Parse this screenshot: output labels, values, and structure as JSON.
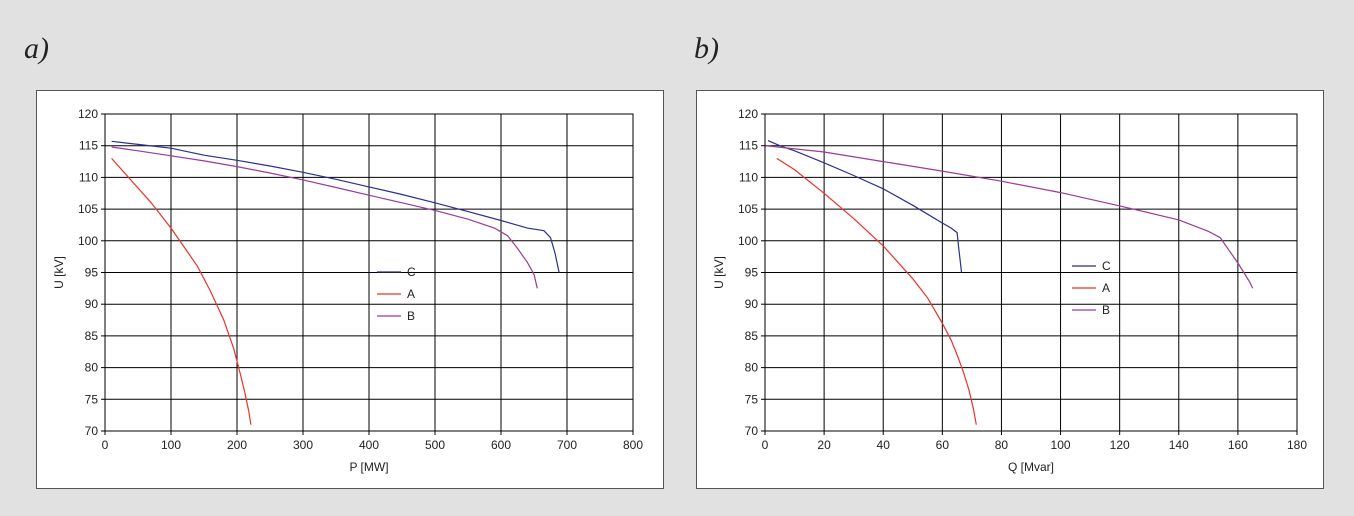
{
  "panels": {
    "a_label": "a)",
    "b_label": "b)"
  },
  "chart_data": [
    {
      "type": "line",
      "xlabel": "P [MW]",
      "ylabel": "U [kV]",
      "xlim": [
        0,
        800
      ],
      "ylim": [
        70,
        120
      ],
      "xticks": [
        0,
        100,
        200,
        300,
        400,
        500,
        600,
        700,
        800
      ],
      "yticks": [
        70,
        75,
        80,
        85,
        90,
        95,
        100,
        105,
        110,
        115,
        120
      ],
      "grid": true,
      "legend_position": "center",
      "series": [
        {
          "name": "C",
          "color": "#2b2f8f",
          "x": [
            10,
            50,
            100,
            150,
            200,
            250,
            300,
            350,
            400,
            450,
            500,
            550,
            600,
            640,
            665,
            675,
            682,
            688
          ],
          "y": [
            115.7,
            115.2,
            114.6,
            113.5,
            112.7,
            111.8,
            110.8,
            109.7,
            108.5,
            107.3,
            106.0,
            104.6,
            103.2,
            102.0,
            101.6,
            100.5,
            98.0,
            95.0
          ]
        },
        {
          "name": "A",
          "color": "#e8322a",
          "x": [
            10,
            40,
            70,
            100,
            120,
            140,
            160,
            180,
            195,
            205,
            212,
            218,
            221
          ],
          "y": [
            113.0,
            109.5,
            106.0,
            102.0,
            99.0,
            96.0,
            92.0,
            87.5,
            83.0,
            79.0,
            76.0,
            73.0,
            71.0
          ]
        },
        {
          "name": "B",
          "color": "#9a3a9b",
          "x": [
            10,
            50,
            100,
            150,
            200,
            250,
            300,
            350,
            400,
            450,
            500,
            550,
            590,
            610,
            625,
            640,
            650,
            655
          ],
          "y": [
            114.8,
            114.2,
            113.4,
            112.6,
            111.7,
            110.7,
            109.6,
            108.4,
            107.2,
            106.0,
            104.8,
            103.4,
            102.0,
            100.8,
            98.8,
            96.6,
            94.7,
            92.5
          ]
        }
      ]
    },
    {
      "type": "line",
      "xlabel": "Q [Mvar]",
      "ylabel": "U [kV]",
      "xlim": [
        0,
        180
      ],
      "ylim": [
        70,
        120
      ],
      "xticks": [
        0,
        20,
        40,
        60,
        80,
        100,
        120,
        140,
        160,
        180
      ],
      "yticks": [
        70,
        75,
        80,
        85,
        90,
        95,
        100,
        105,
        110,
        115,
        120
      ],
      "grid": true,
      "legend_position": "center-right",
      "series": [
        {
          "name": "C",
          "color": "#2b2f8f",
          "x": [
            1,
            5,
            10,
            20,
            30,
            40,
            50,
            55,
            60,
            63,
            65,
            65.5,
            66,
            66.5
          ],
          "y": [
            115.8,
            115.0,
            114.2,
            112.3,
            110.3,
            108.2,
            105.6,
            104.2,
            102.8,
            102.0,
            101.3,
            99.0,
            97.0,
            95.0
          ]
        },
        {
          "name": "A",
          "color": "#e8322a",
          "x": [
            4,
            10,
            20,
            30,
            40,
            50,
            55,
            60,
            63,
            65,
            67,
            69,
            70.5,
            71.5
          ],
          "y": [
            113.0,
            111.2,
            107.5,
            103.5,
            99.2,
            94.0,
            91.0,
            87.0,
            84.3,
            82.0,
            79.5,
            76.5,
            73.5,
            71.0
          ]
        },
        {
          "name": "B",
          "color": "#9a3a9b",
          "x": [
            0,
            20,
            40,
            60,
            80,
            100,
            120,
            140,
            150,
            154,
            157,
            160,
            162,
            164,
            165
          ],
          "y": [
            115.0,
            114.0,
            112.5,
            111.0,
            109.4,
            107.6,
            105.5,
            103.3,
            101.5,
            100.5,
            98.5,
            96.5,
            95.0,
            93.5,
            92.5
          ]
        }
      ]
    }
  ]
}
